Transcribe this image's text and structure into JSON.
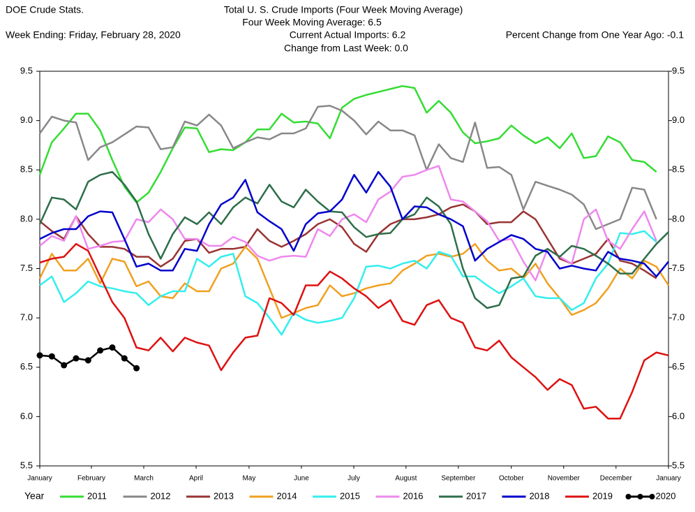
{
  "chart_data": {
    "type": "line",
    "title": "Total U.  S. Crude Imports (Four Week Moving Average)",
    "annotations": [
      "DOE Crude Stats.",
      "Four Week Moving Average:  6.5",
      "Week Ending:   Friday, February 28, 2020",
      "Current Actual Imports:  6.2",
      "Percent Change from One Year Ago:  -0.1",
      "Change from Last Week:  0.0"
    ],
    "legend_title": "Year",
    "x": [
      0,
      1,
      2,
      3,
      4,
      5,
      6,
      7,
      8,
      9,
      10,
      11,
      12,
      13,
      14,
      15,
      16,
      17,
      18,
      19,
      20,
      21,
      22,
      23,
      24,
      25,
      26,
      27,
      28,
      29,
      30,
      31,
      32,
      33,
      34,
      35,
      36,
      37,
      38,
      39,
      40,
      41,
      42,
      43,
      44,
      45,
      46,
      47,
      48,
      49,
      50,
      51,
      52
    ],
    "xlim": [
      0,
      52
    ],
    "xticks": [
      {
        "value": 0,
        "label": "January"
      },
      {
        "value": 4.27,
        "label": "February"
      },
      {
        "value": 8.6,
        "label": "March"
      },
      {
        "value": 12.93,
        "label": "April"
      },
      {
        "value": 17.31,
        "label": "May"
      },
      {
        "value": 21.64,
        "label": "June"
      },
      {
        "value": 25.97,
        "label": "July"
      },
      {
        "value": 30.29,
        "label": "August"
      },
      {
        "value": 34.62,
        "label": "September"
      },
      {
        "value": 39,
        "label": "October"
      },
      {
        "value": 43.33,
        "label": "November"
      },
      {
        "value": 47.66,
        "label": "December"
      },
      {
        "value": 52,
        "label": "January"
      }
    ],
    "ylim": [
      5.5,
      9.5
    ],
    "yticks": [
      {
        "value": 5.5,
        "label": "5.5"
      },
      {
        "value": 6,
        "label": "6.0"
      },
      {
        "value": 6.5,
        "label": "6.5"
      },
      {
        "value": 7,
        "label": "7.0"
      },
      {
        "value": 7.5,
        "label": "7.5"
      },
      {
        "value": 8,
        "label": "8.0"
      },
      {
        "value": 8.5,
        "label": "8.5"
      },
      {
        "value": 9,
        "label": "9.0"
      },
      {
        "value": 9.5,
        "label": "9.5"
      }
    ],
    "grid": false,
    "series": [
      {
        "name": "2011",
        "color": "#33dd33",
        "values": [
          8.45,
          8.78,
          8.92,
          9.07,
          9.07,
          8.9,
          8.6,
          8.33,
          8.17,
          8.27,
          8.48,
          8.72,
          8.93,
          8.92,
          8.68,
          8.71,
          8.7,
          8.78,
          8.91,
          8.91,
          9.07,
          8.98,
          8.99,
          8.97,
          8.82,
          9.13,
          9.22,
          9.26,
          9.29,
          9.32,
          9.35,
          9.33,
          9.08,
          9.2,
          9.08,
          8.88,
          8.77,
          8.79,
          8.82,
          8.95,
          8.85,
          8.77,
          8.83,
          8.72,
          8.87,
          8.62,
          8.64,
          8.84,
          8.78,
          8.6,
          8.58,
          8.48,
          null
        ]
      },
      {
        "name": "2012",
        "color": "#888888",
        "values": [
          8.87,
          9.04,
          9.0,
          8.98,
          8.6,
          8.73,
          8.78,
          8.86,
          8.94,
          8.93,
          8.71,
          8.73,
          8.99,
          8.95,
          9.06,
          8.95,
          8.72,
          8.78,
          8.83,
          8.81,
          8.87,
          8.87,
          8.92,
          9.14,
          9.15,
          9.1,
          9.0,
          8.86,
          8.99,
          8.9,
          8.9,
          8.85,
          8.5,
          8.76,
          8.62,
          8.58,
          8.98,
          8.52,
          8.53,
          8.45,
          8.1,
          8.38,
          8.34,
          8.3,
          8.25,
          8.15,
          7.9,
          7.95,
          8.0,
          8.32,
          8.3,
          8.0,
          null
        ]
      },
      {
        "name": "2013",
        "color": "#993333",
        "values": [
          7.98,
          7.88,
          7.8,
          8.03,
          7.85,
          7.72,
          7.72,
          7.7,
          7.62,
          7.62,
          7.52,
          7.6,
          7.78,
          7.8,
          7.66,
          7.7,
          7.7,
          7.72,
          7.9,
          7.78,
          7.72,
          7.78,
          7.85,
          7.95,
          8.0,
          7.92,
          7.75,
          7.67,
          7.85,
          7.95,
          8.0,
          8.0,
          8.02,
          8.05,
          8.12,
          8.15,
          8.08,
          7.95,
          7.97,
          7.97,
          8.08,
          8.0,
          7.8,
          7.6,
          7.55,
          7.6,
          7.65,
          7.8,
          7.58,
          7.55,
          7.48,
          7.4,
          null
        ]
      },
      {
        "name": "2014",
        "color": "#f0a020",
        "values": [
          7.4,
          7.65,
          7.48,
          7.48,
          7.6,
          7.35,
          7.6,
          7.57,
          7.32,
          7.37,
          7.22,
          7.2,
          7.35,
          7.27,
          7.27,
          7.5,
          7.55,
          7.72,
          7.6,
          7.3,
          7.0,
          7.05,
          7.1,
          7.13,
          7.33,
          7.22,
          7.25,
          7.3,
          7.33,
          7.35,
          7.48,
          7.55,
          7.63,
          7.65,
          7.62,
          7.65,
          7.75,
          7.58,
          7.48,
          7.5,
          7.4,
          7.55,
          7.35,
          7.2,
          7.03,
          7.08,
          7.15,
          7.3,
          7.5,
          7.4,
          7.58,
          7.52,
          7.33
        ]
      },
      {
        "name": "2015",
        "color": "#33eeee",
        "values": [
          7.33,
          7.42,
          7.16,
          7.25,
          7.37,
          7.32,
          7.3,
          7.27,
          7.25,
          7.13,
          7.22,
          7.27,
          7.27,
          7.6,
          7.52,
          7.62,
          7.65,
          7.22,
          7.15,
          7.0,
          6.83,
          7.05,
          6.98,
          6.95,
          6.97,
          7.0,
          7.2,
          7.52,
          7.53,
          7.5,
          7.55,
          7.58,
          7.5,
          7.67,
          7.63,
          7.42,
          7.42,
          7.33,
          7.25,
          7.32,
          7.4,
          7.22,
          7.2,
          7.2,
          7.08,
          7.15,
          7.4,
          7.55,
          7.86,
          7.85,
          7.88,
          7.77,
          null
        ]
      },
      {
        "name": "2016",
        "color": "#ee88ee",
        "values": [
          7.73,
          7.83,
          7.78,
          8.03,
          7.7,
          7.73,
          7.77,
          7.78,
          8.0,
          7.97,
          8.1,
          8.0,
          7.8,
          7.8,
          7.73,
          7.73,
          7.82,
          7.77,
          7.63,
          7.58,
          7.62,
          7.63,
          7.62,
          7.9,
          7.83,
          8.0,
          8.05,
          7.97,
          8.2,
          8.28,
          8.43,
          8.45,
          8.5,
          8.54,
          8.2,
          8.18,
          8.08,
          7.98,
          7.78,
          7.8,
          7.57,
          7.38,
          7.7,
          7.62,
          7.55,
          8.0,
          8.1,
          7.78,
          7.7,
          7.9,
          8.08,
          7.78,
          null
        ]
      },
      {
        "name": "2017",
        "color": "#2e6e4a",
        "values": [
          7.95,
          8.22,
          8.2,
          8.1,
          8.38,
          8.45,
          8.48,
          8.35,
          8.18,
          7.85,
          7.6,
          7.85,
          8.02,
          7.95,
          8.07,
          7.95,
          8.12,
          8.22,
          8.16,
          8.35,
          8.18,
          8.12,
          8.3,
          8.18,
          8.08,
          8.07,
          7.92,
          7.82,
          7.85,
          7.86,
          8.0,
          8.05,
          8.22,
          8.13,
          7.95,
          7.5,
          7.2,
          7.1,
          7.13,
          7.4,
          7.42,
          7.63,
          7.7,
          7.62,
          7.73,
          7.7,
          7.63,
          7.55,
          7.45,
          7.45,
          7.6,
          7.75,
          7.87
        ]
      },
      {
        "name": "2018",
        "color": "#0000cc",
        "values": [
          7.8,
          7.86,
          7.9,
          7.9,
          8.03,
          8.08,
          8.07,
          7.8,
          7.52,
          7.55,
          7.48,
          7.48,
          7.7,
          7.68,
          7.95,
          8.15,
          8.22,
          8.4,
          8.07,
          7.98,
          7.9,
          7.68,
          7.95,
          8.06,
          8.08,
          8.2,
          8.45,
          8.27,
          8.48,
          8.33,
          8.0,
          8.13,
          8.12,
          8.05,
          8.0,
          7.93,
          7.58,
          7.7,
          7.77,
          7.84,
          7.8,
          7.7,
          7.67,
          7.5,
          7.53,
          7.5,
          7.48,
          7.67,
          7.6,
          7.58,
          7.55,
          7.42,
          7.57
        ]
      },
      {
        "name": "2019",
        "color": "#dd1111",
        "values": [
          7.56,
          7.6,
          7.62,
          7.75,
          7.68,
          7.42,
          7.16,
          7.0,
          6.7,
          6.67,
          6.8,
          6.66,
          6.8,
          6.75,
          6.72,
          6.47,
          6.65,
          6.8,
          6.82,
          7.2,
          7.15,
          7.03,
          7.33,
          7.33,
          7.47,
          7.4,
          7.3,
          7.22,
          7.1,
          7.18,
          6.97,
          6.93,
          7.13,
          7.18,
          7.0,
          6.95,
          6.7,
          6.67,
          6.77,
          6.6,
          6.5,
          6.4,
          6.27,
          6.38,
          6.32,
          6.08,
          6.1,
          5.98,
          5.98,
          6.25,
          6.57,
          6.65,
          6.62
        ]
      },
      {
        "name": "2020",
        "color": "#000000",
        "marker": "circle",
        "values": [
          6.62,
          6.61,
          6.52,
          6.59,
          6.57,
          6.67,
          6.7,
          6.59,
          6.49,
          null,
          null,
          null,
          null,
          null,
          null,
          null,
          null,
          null,
          null,
          null,
          null,
          null,
          null,
          null,
          null,
          null,
          null,
          null,
          null,
          null,
          null,
          null,
          null,
          null,
          null,
          null,
          null,
          null,
          null,
          null,
          null,
          null,
          null,
          null,
          null,
          null,
          null,
          null,
          null,
          null,
          null,
          null,
          null
        ]
      }
    ]
  }
}
